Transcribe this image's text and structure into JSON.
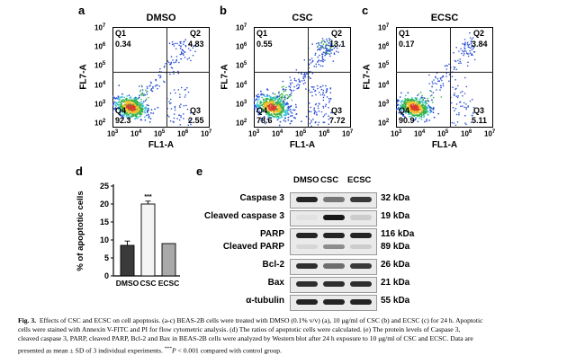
{
  "flow_panels": [
    {
      "letter": "a",
      "title": "DMSO",
      "q1_label": "Q1",
      "q1": "0.34",
      "q2_label": "Q2",
      "q2": "4.83",
      "q3_label": "Q3",
      "q3": "2.55",
      "q4_label": "Q4",
      "q4": "92.3"
    },
    {
      "letter": "b",
      "title": "CSC",
      "q1_label": "Q1",
      "q1": "0.55",
      "q2_label": "Q2",
      "q2": "13.1",
      "q3_label": "Q3",
      "q3": "7.72",
      "q4_label": "Q4",
      "q4": "78.6"
    },
    {
      "letter": "c",
      "title": "ECSC",
      "q1_label": "Q1",
      "q1": "0.17",
      "q2_label": "Q2",
      "q2": "3.84",
      "q3_label": "Q3",
      "q3": "5.11",
      "q4_label": "Q4",
      "q4": "90.9"
    }
  ],
  "flow_axes": {
    "xlabel": "FL1-A",
    "ylabel": "FL7-A",
    "ticks": [
      {
        "base": "10",
        "exp": "3"
      },
      {
        "base": "10",
        "exp": "4"
      },
      {
        "base": "10",
        "exp": "5"
      },
      {
        "base": "10",
        "exp": "6"
      },
      {
        "base": "10",
        "exp": "7"
      }
    ],
    "y_ticks": [
      {
        "base": "10",
        "exp": "7"
      },
      {
        "base": "10",
        "exp": "6"
      },
      {
        "base": "10",
        "exp": "5"
      },
      {
        "base": "10",
        "exp": "4"
      },
      {
        "base": "10",
        "exp": "3"
      },
      {
        "base": "10",
        "exp": "2"
      }
    ]
  },
  "panel_d": {
    "letter": "d"
  },
  "panel_e": {
    "letter": "e"
  },
  "chart_data": {
    "type": "bar",
    "title": "",
    "categories": [
      "DMSO",
      "CSC",
      "ECSC"
    ],
    "values": [
      8.5,
      20,
      9
    ],
    "errors": [
      1.2,
      0.8,
      0
    ],
    "ylabel": "% of apoptotic cells",
    "xlabel": "",
    "ylim": [
      0,
      25
    ],
    "yticks": [
      "0",
      "5",
      "10",
      "15",
      "20",
      "25"
    ],
    "annotations": [
      "***"
    ],
    "colors": [
      "#3a3a3a",
      "#f4f4f4",
      "#a9a9a9"
    ]
  },
  "western_blot": {
    "columns": [
      "DMSO",
      "CSC",
      "ECSC"
    ],
    "rows": [
      {
        "label": "Caspase 3",
        "kda": "32 kDa"
      },
      {
        "label": "Cleaved caspase 3",
        "kda": "19 kDa"
      },
      {
        "label": "PARP",
        "kda": "116 kDa"
      },
      {
        "label": "Cleaved PARP",
        "kda": "89 kDa"
      },
      {
        "label": "Bcl-2",
        "kda": "26 kDa"
      },
      {
        "label": "Bax",
        "kda": "21 kDa"
      },
      {
        "label": "α-tubulin",
        "kda": "55 kDa"
      }
    ]
  },
  "caption": {
    "fig_label": "Fig. 3.",
    "line1": "Effects of CSC and ECSC on cell apoptosis. (a-c) BEAS-2B cells were treated with DMSO (0.1% v/v) (a), 10 μg/ml of CSC (b) and ECSC (c) for 24 h. Apoptotic",
    "line2": "cells were stained with Annexin V-FITC and PI for flow cytometric analysis. (d) The ratios of apoptotic cells were calculated. (e) The protein levels of Caspase 3,",
    "line3": "cleaved caspase 3, PARP, cleaved PARP, Bcl-2 and Bax in BEAS-2B cells were analyzed by Western blot after 24 h exposure to 10 μg/ml of CSC and ECSC. Data are",
    "line4": "presented as mean ± SD of 3 individual experiments.",
    "sig_stars": "***",
    "sig_p": "P",
    "sig_rest": " < 0.001 compared with control group."
  }
}
